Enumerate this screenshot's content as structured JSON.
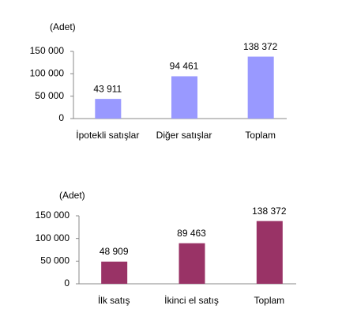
{
  "chart_data": [
    {
      "type": "bar",
      "ylabel": "(Adet)",
      "categories": [
        "İpotekli satışlar",
        "Diğer satışlar",
        "Toplam"
      ],
      "values": [
        43911,
        94461,
        138372
      ],
      "value_labels": [
        "43 911",
        "94 461",
        "138 372"
      ],
      "color": "#9999ff",
      "ylim": [
        0,
        150000
      ],
      "yticks": [
        0,
        {
          "value": 50000,
          "label": "50 000"
        },
        {
          "value": 100000,
          "label": "100 000"
        },
        {
          "value": 150000,
          "label": "150 000"
        }
      ]
    },
    {
      "type": "bar",
      "ylabel": "(Adet)",
      "categories": [
        "İlk satış",
        "İkinci el satış",
        "Toplam"
      ],
      "values": [
        48909,
        89463,
        138372
      ],
      "value_labels": [
        "48 909",
        "89 463",
        "138 372"
      ],
      "color": "#993366",
      "ylim": [
        0,
        150000
      ],
      "yticks": [
        0,
        {
          "value": 50000,
          "label": "50 000"
        },
        {
          "value": 100000,
          "label": "100 000"
        },
        {
          "value": 150000,
          "label": "150 000"
        }
      ]
    }
  ]
}
